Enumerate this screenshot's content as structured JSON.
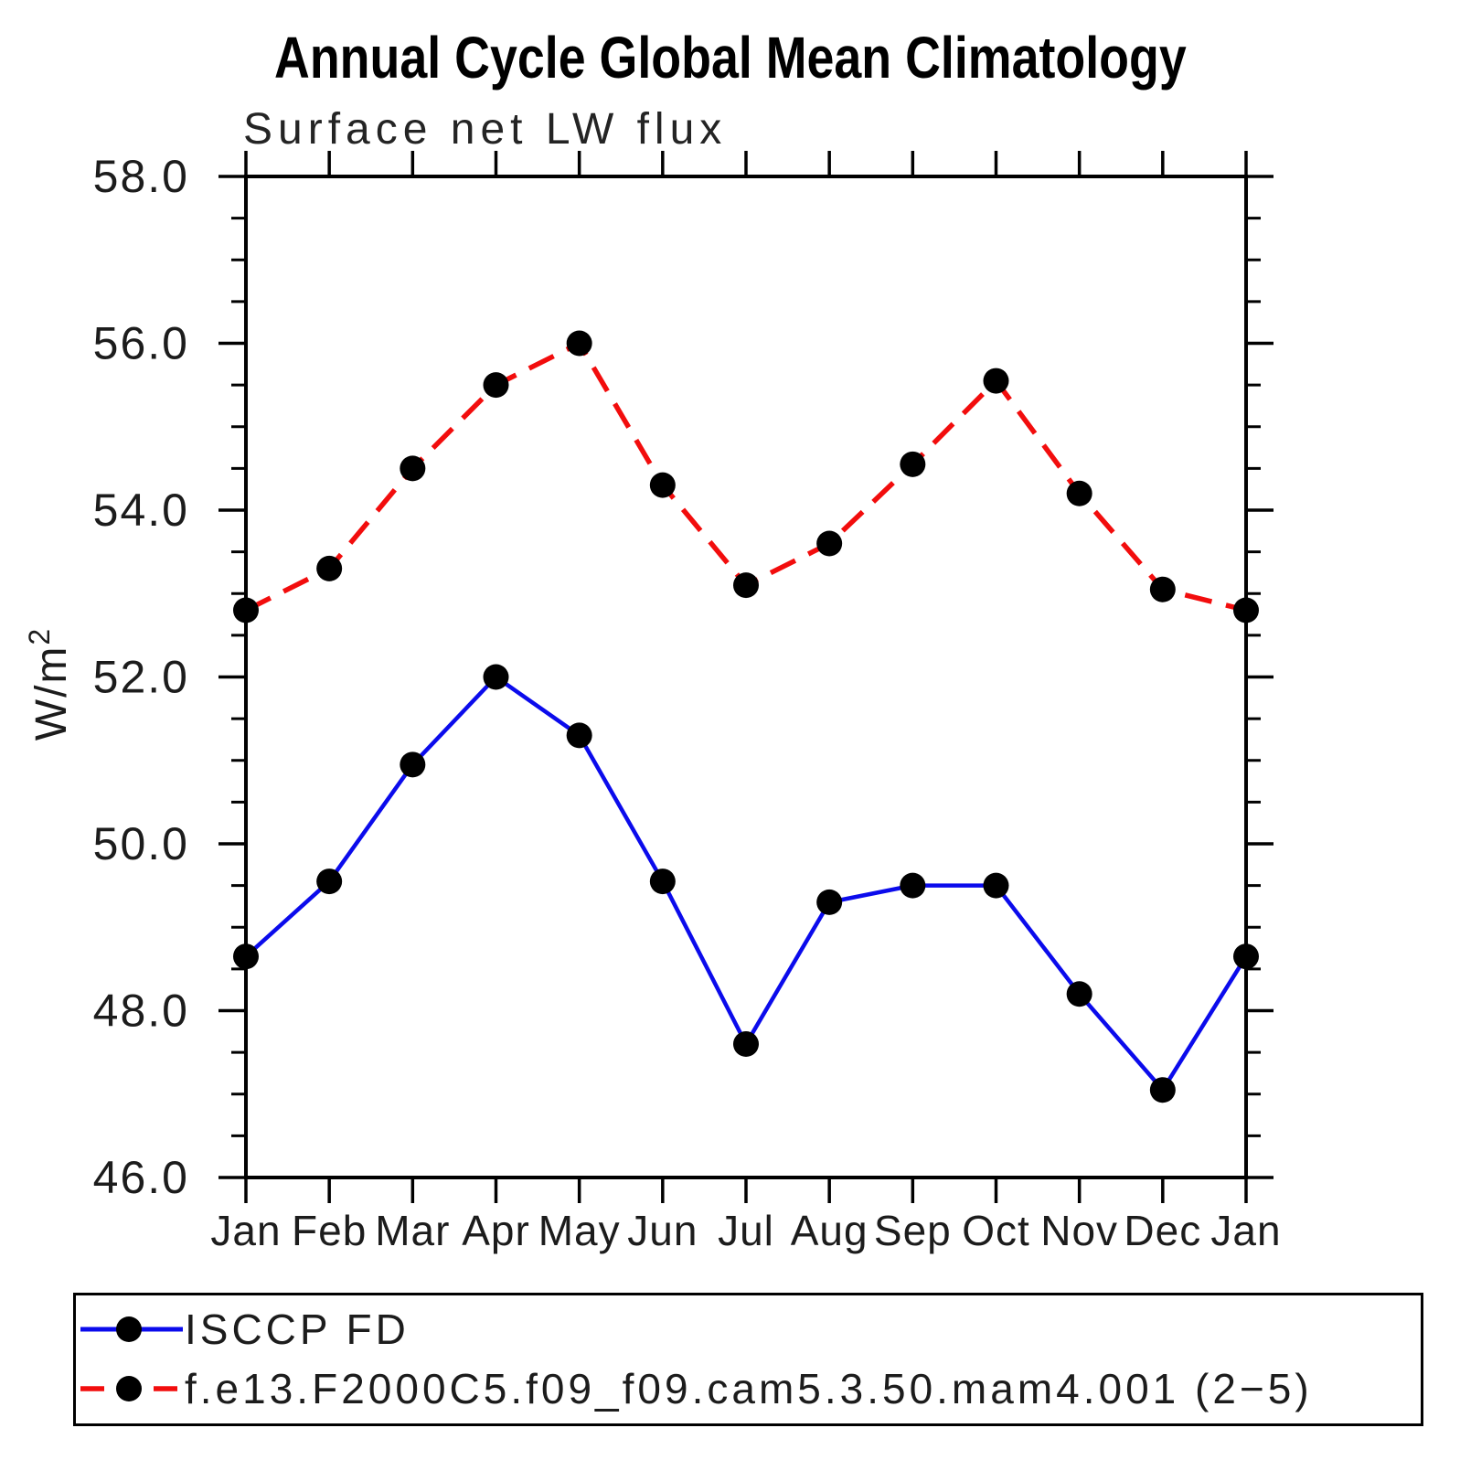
{
  "chart_data": {
    "type": "line",
    "title": "Annual Cycle Global Mean Climatology",
    "subtitle": "Surface net LW flux",
    "xlabel": "",
    "ylabel": "W/m²",
    "categories": [
      "Jan",
      "Feb",
      "Mar",
      "Apr",
      "May",
      "Jun",
      "Jul",
      "Aug",
      "Sep",
      "Oct",
      "Nov",
      "Dec",
      "Jan"
    ],
    "ylim": [
      46.0,
      58.0
    ],
    "y_major_ticks": [
      58.0,
      56.0,
      54.0,
      52.0,
      50.0,
      48.0,
      46.0
    ],
    "y_tick_labels": [
      "58.0",
      "56.0",
      "54.0",
      "52.0",
      "50.0",
      "48.0",
      "46.0"
    ],
    "y_minor_step": 0.5,
    "grid": false,
    "legend_position": "bottom-left-box",
    "series": [
      {
        "name": "ISCCP FD",
        "style": "solid",
        "color": "#0b0bec",
        "marker": "circle",
        "marker_color": "#000000",
        "values": [
          48.65,
          49.55,
          50.95,
          52.0,
          51.3,
          49.55,
          47.6,
          49.3,
          49.5,
          49.5,
          48.2,
          47.05,
          48.65
        ]
      },
      {
        "name": "f.e13.F2000C5.f09_f09.cam5.3.50.mam4.001 (2−5)",
        "style": "dashed",
        "color": "#f20d0d",
        "marker": "circle",
        "marker_color": "#000000",
        "values": [
          52.8,
          53.3,
          54.5,
          55.5,
          56.0,
          54.3,
          53.1,
          53.6,
          54.55,
          55.55,
          54.2,
          53.05,
          52.8
        ]
      }
    ],
    "axis_color": "#000000"
  }
}
